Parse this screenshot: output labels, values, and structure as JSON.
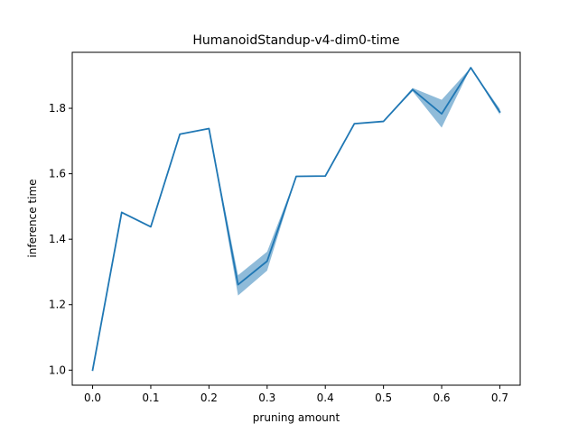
{
  "chart_data": {
    "type": "line",
    "title": "HumanoidStandup-v4-dim0-time",
    "xlabel": "pruning amount",
    "ylabel": "inference time",
    "xlim": [
      -0.035,
      0.735
    ],
    "ylim": [
      0.954,
      1.971
    ],
    "xticks": [
      0.0,
      0.1,
      0.2,
      0.3,
      0.4,
      0.5,
      0.6,
      0.7
    ],
    "xtick_labels": [
      "0.0",
      "0.1",
      "0.2",
      "0.3",
      "0.4",
      "0.5",
      "0.6",
      "0.7"
    ],
    "yticks": [
      1.0,
      1.2,
      1.4,
      1.6,
      1.8
    ],
    "ytick_labels": [
      "1.0",
      "1.2",
      "1.4",
      "1.6",
      "1.8"
    ],
    "grid": false,
    "legend": false,
    "series": [
      {
        "color": "#1f77b4",
        "band_color": "#1f77b4",
        "band_opacity": 0.5,
        "x": [
          0.0,
          0.05,
          0.1,
          0.15,
          0.2,
          0.25,
          0.3,
          0.35,
          0.4,
          0.45,
          0.5,
          0.55,
          0.6,
          0.65,
          0.7
        ],
        "y": [
          1.0,
          1.482,
          1.438,
          1.721,
          1.738,
          1.261,
          1.333,
          1.592,
          1.593,
          1.753,
          1.76,
          1.857,
          1.783,
          1.924,
          1.789
        ],
        "lower": [
          1.0,
          1.482,
          1.438,
          1.721,
          1.738,
          1.228,
          1.304,
          1.592,
          1.593,
          1.753,
          1.76,
          1.852,
          1.741,
          1.924,
          1.78
        ],
        "upper": [
          1.0,
          1.482,
          1.438,
          1.721,
          1.738,
          1.29,
          1.362,
          1.592,
          1.593,
          1.753,
          1.76,
          1.862,
          1.826,
          1.924,
          1.798
        ]
      }
    ]
  }
}
